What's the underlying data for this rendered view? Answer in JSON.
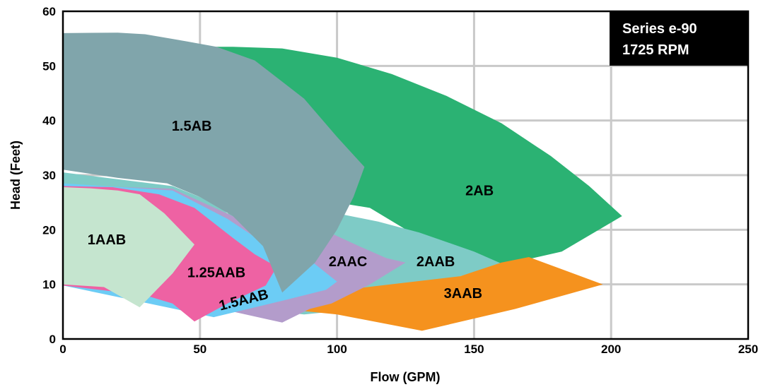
{
  "chart_data": {
    "type": "area",
    "xlabel": "Flow (GPM)",
    "ylabel": "Head (Feet)",
    "xlim": [
      0,
      250
    ],
    "ylim": [
      0,
      60
    ],
    "xticks": [
      0,
      50,
      100,
      150,
      200,
      250
    ],
    "yticks": [
      0,
      10,
      20,
      30,
      40,
      50,
      60
    ],
    "grid": true,
    "annotation": [
      "Series e-90",
      "1725 RPM"
    ],
    "regions": [
      {
        "name": "2AB",
        "color": "#2bb273",
        "label_at": [
          152,
          27
        ],
        "outline": [
          [
            50,
            53.5
          ],
          [
            62,
            53.5
          ],
          [
            80,
            53.2
          ],
          [
            100,
            51.5
          ],
          [
            120,
            48.5
          ],
          [
            140,
            44.5
          ],
          [
            160,
            39.5
          ],
          [
            178,
            33.5
          ],
          [
            192,
            28
          ],
          [
            204,
            22.5
          ],
          [
            182,
            16
          ],
          [
            160,
            13.5
          ],
          [
            148,
            11.5
          ],
          [
            150,
            12.5
          ],
          [
            112,
            24
          ],
          [
            100,
            25
          ],
          [
            80,
            40
          ]
        ]
      },
      {
        "name": "2AAB",
        "color": "#7ecbc6",
        "label_at": [
          136,
          14
        ],
        "outline": [
          [
            0,
            30.5
          ],
          [
            40,
            28
          ],
          [
            55,
            25
          ],
          [
            60,
            23
          ],
          [
            100,
            23
          ],
          [
            115,
            21.5
          ],
          [
            130,
            19.5
          ],
          [
            150,
            16
          ],
          [
            160,
            13.8
          ],
          [
            156,
            13
          ],
          [
            145,
            11.5
          ],
          [
            128,
            8
          ],
          [
            108,
            5.5
          ],
          [
            88,
            4.5
          ],
          [
            60,
            6
          ],
          [
            0,
            9.8
          ]
        ]
      },
      {
        "name": "3AAB",
        "color": "#f5921e",
        "label_at": [
          146,
          8.2
        ],
        "outline": [
          [
            60,
            6.5
          ],
          [
            145,
            11.5
          ],
          [
            160,
            14
          ],
          [
            170,
            15
          ],
          [
            197,
            10
          ],
          [
            165,
            5.5
          ],
          [
            131,
            1.5
          ],
          [
            100,
            4.5
          ]
        ]
      },
      {
        "name": "2AAC",
        "color": "#b39ccb",
        "label_at": [
          104,
          14
        ],
        "outline": [
          [
            0,
            28.2
          ],
          [
            40,
            27.5
          ],
          [
            62,
            22.5
          ],
          [
            80,
            22
          ],
          [
            95,
            20
          ],
          [
            108,
            17
          ],
          [
            118,
            14.8
          ],
          [
            125,
            14
          ],
          [
            112,
            10
          ],
          [
            98,
            6.5
          ],
          [
            90,
            5.5
          ],
          [
            80,
            3
          ],
          [
            62,
            5
          ],
          [
            0,
            9.8
          ]
        ]
      },
      {
        "name": "1.5AAB",
        "color": "#6cccf5",
        "label_at": [
          66,
          7
        ],
        "outline": [
          [
            0,
            28.5
          ],
          [
            40,
            27.2
          ],
          [
            60,
            22
          ],
          [
            75,
            17
          ],
          [
            90,
            14.5
          ],
          [
            100,
            10.5
          ],
          [
            96,
            9
          ],
          [
            80,
            7
          ],
          [
            55,
            4
          ],
          [
            0,
            9.8
          ]
        ]
      },
      {
        "name": "1.25AAB",
        "color": "#ee62a3",
        "label_at": [
          56,
          12
        ],
        "outline": [
          [
            0,
            28
          ],
          [
            18,
            27.8
          ],
          [
            35,
            26.5
          ],
          [
            48,
            24
          ],
          [
            62,
            18.5
          ],
          [
            70,
            15.5
          ],
          [
            78,
            13.2
          ],
          [
            74,
            9.8
          ],
          [
            60,
            6.5
          ],
          [
            48,
            3.2
          ],
          [
            40,
            6.5
          ],
          [
            30,
            8
          ],
          [
            0,
            9.8
          ]
        ]
      },
      {
        "name": "1AAB",
        "color": "#c5e5cf",
        "label_at": [
          16,
          18
        ],
        "outline": [
          [
            0,
            27.8
          ],
          [
            10,
            27.6
          ],
          [
            20,
            27.2
          ],
          [
            28,
            26.5
          ],
          [
            37,
            23
          ],
          [
            48,
            17.3
          ],
          [
            40,
            12
          ],
          [
            28,
            5.8
          ],
          [
            15,
            9.5
          ],
          [
            0,
            10
          ]
        ]
      },
      {
        "name": "1.5AB",
        "color": "#80a5ab",
        "label_at": [
          47,
          38.8
        ],
        "outline": [
          [
            0,
            56
          ],
          [
            20,
            56.1
          ],
          [
            30,
            55.8
          ],
          [
            45,
            54.5
          ],
          [
            56,
            53.5
          ],
          [
            70,
            51
          ],
          [
            88,
            44
          ],
          [
            100,
            37
          ],
          [
            110,
            31.5
          ],
          [
            106,
            26
          ],
          [
            100,
            20
          ],
          [
            92,
            14
          ],
          [
            80,
            8.5
          ],
          [
            73,
            17
          ],
          [
            62,
            22.5
          ],
          [
            50,
            26
          ],
          [
            38,
            28.5
          ],
          [
            20,
            29.5
          ],
          [
            0,
            31
          ]
        ]
      }
    ]
  }
}
